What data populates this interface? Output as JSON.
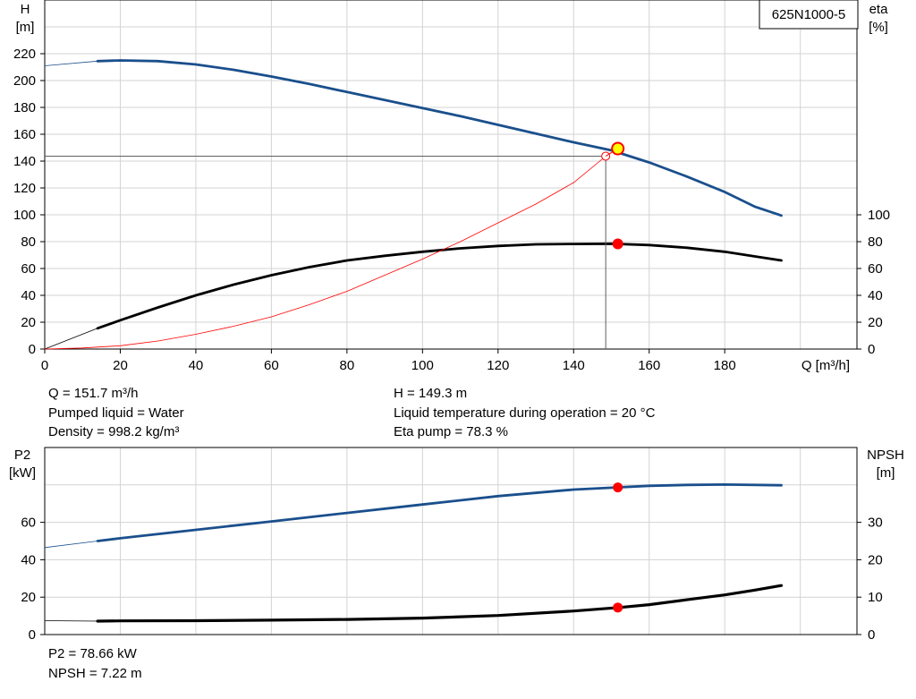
{
  "model_box": {
    "label": "625N1000-5"
  },
  "chart_data": [
    {
      "id": "pump-top",
      "type": "line",
      "xlabel": "Q [m³/h]",
      "xlim": [
        0,
        215
      ],
      "x_ticks": [
        0,
        20,
        40,
        60,
        80,
        100,
        120,
        140,
        160,
        180
      ],
      "left_axis": {
        "label_line1": "H",
        "label_line2": "[m]",
        "ylim": [
          0,
          260
        ],
        "ticks": [
          0,
          20,
          40,
          60,
          80,
          100,
          120,
          140,
          160,
          180,
          200,
          220
        ]
      },
      "right_axis": {
        "label_line1": "eta",
        "label_line2": "[%]",
        "ylim": [
          0,
          260
        ],
        "ticks": [
          0,
          20,
          40,
          60,
          80,
          100
        ]
      },
      "grid": true,
      "series": [
        {
          "key": "head",
          "axis": "left",
          "color": "#1a4f8c",
          "points": [
            [
              14,
              214.5
            ],
            [
              20,
              215
            ],
            [
              30,
              214.5
            ],
            [
              40,
              212
            ],
            [
              50,
              208
            ],
            [
              60,
              203
            ],
            [
              70,
              197.5
            ],
            [
              80,
              191.5
            ],
            [
              90,
              185.5
            ],
            [
              100,
              179.5
            ],
            [
              110,
              173.5
            ],
            [
              120,
              167
            ],
            [
              130,
              160.5
            ],
            [
              140,
              154
            ],
            [
              150,
              148
            ],
            [
              160,
              139
            ],
            [
              170,
              128.5
            ],
            [
              180,
              117
            ],
            [
              188,
              106
            ],
            [
              195,
              99.5
            ]
          ],
          "ext_points": [
            [
              0,
              211
            ],
            [
              14,
              214.5
            ]
          ]
        },
        {
          "key": "eta",
          "axis": "right",
          "color": "#000000",
          "points": [
            [
              14,
              15.5
            ],
            [
              20,
              21.5
            ],
            [
              30,
              31
            ],
            [
              40,
              40
            ],
            [
              50,
              48
            ],
            [
              60,
              55
            ],
            [
              70,
              61
            ],
            [
              80,
              66
            ],
            [
              90,
              69.5
            ],
            [
              100,
              72.5
            ],
            [
              110,
              75
            ],
            [
              120,
              76.8
            ],
            [
              130,
              78
            ],
            [
              140,
              78.3
            ],
            [
              150,
              78.5
            ],
            [
              152,
              78.3
            ],
            [
              160,
              77.5
            ],
            [
              170,
              75.5
            ],
            [
              180,
              72.5
            ],
            [
              188,
              69
            ],
            [
              195,
              66
            ]
          ],
          "ext_points": [
            [
              0,
              0
            ],
            [
              14,
              15.5
            ]
          ]
        },
        {
          "key": "system",
          "axis": "left",
          "color": "#ff0000",
          "points": [
            [
              0,
              0
            ],
            [
              10,
              0.8
            ],
            [
              20,
              2.5
            ],
            [
              30,
              6
            ],
            [
              40,
              11
            ],
            [
              50,
              17
            ],
            [
              60,
              24
            ],
            [
              70,
              33
            ],
            [
              80,
              43
            ],
            [
              90,
              55
            ],
            [
              100,
              67
            ],
            [
              110,
              80
            ],
            [
              120,
              94
            ],
            [
              130,
              108
            ],
            [
              140,
              124
            ],
            [
              148.5,
              143.7
            ]
          ]
        }
      ],
      "operating_point": {
        "q": 151.7,
        "h": 149.3,
        "eta": 78.3
      },
      "system_point": {
        "q": 148.5,
        "h": 143.7
      }
    },
    {
      "id": "pump-bottom",
      "type": "line",
      "xlim": [
        0,
        215
      ],
      "left_axis": {
        "label_line1": "P2",
        "label_line2": "[kW]",
        "ylim": [
          0,
          100
        ],
        "ticks": [
          0,
          20,
          40,
          60
        ]
      },
      "right_axis": {
        "label_line1": "NPSH",
        "label_line2": "[m]",
        "ylim": [
          0,
          50
        ],
        "ticks": [
          0,
          10,
          20,
          30
        ]
      },
      "grid": true,
      "series": [
        {
          "key": "p2",
          "axis": "left",
          "color": "#1a4f8c",
          "points": [
            [
              14,
              50
            ],
            [
              20,
              51.5
            ],
            [
              40,
              56
            ],
            [
              60,
              60.5
            ],
            [
              80,
              65
            ],
            [
              100,
              69.5
            ],
            [
              120,
              74
            ],
            [
              140,
              77.5
            ],
            [
              152,
              78.7
            ],
            [
              160,
              79.5
            ],
            [
              170,
              80
            ],
            [
              180,
              80.2
            ],
            [
              195,
              79.8
            ]
          ],
          "ext_points": [
            [
              0,
              46.5
            ],
            [
              14,
              50
            ]
          ]
        },
        {
          "key": "npsh",
          "axis": "right",
          "color": "#000000",
          "points": [
            [
              14,
              3.6
            ],
            [
              20,
              3.65
            ],
            [
              40,
              3.7
            ],
            [
              60,
              3.85
            ],
            [
              80,
              4.05
            ],
            [
              100,
              4.4
            ],
            [
              120,
              5.1
            ],
            [
              140,
              6.3
            ],
            [
              152,
              7.22
            ],
            [
              160,
              8
            ],
            [
              170,
              9.3
            ],
            [
              180,
              10.6
            ],
            [
              188,
              11.9
            ],
            [
              195,
              13.1
            ]
          ],
          "ext_points": [
            [
              0,
              3.7
            ],
            [
              14,
              3.6
            ]
          ]
        }
      ],
      "operating_point": {
        "q": 151.7,
        "p2": 78.66,
        "npsh": 7.22
      }
    }
  ],
  "info_top_left": [
    "Q = 151.7 m³/h",
    "Pumped liquid = Water",
    "Density = 998.2 kg/m³"
  ],
  "info_top_right": [
    "H = 149.3 m",
    "Liquid temperature during operation = 20 °C",
    "Eta pump = 78.3 %"
  ],
  "info_bottom": [
    "P2 = 78.66 kW",
    "NPSH = 7.22 m"
  ]
}
